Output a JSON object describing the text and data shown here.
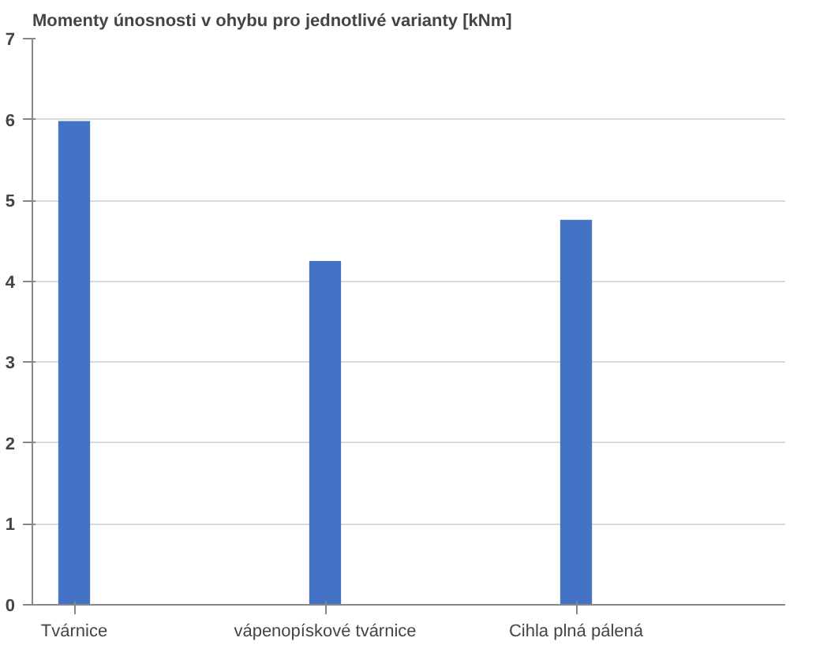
{
  "chart_data": {
    "type": "bar",
    "title": "Momenty únosnosti v ohybu pro jednotlivé varianty [kNm]",
    "categories": [
      "Tvárnice",
      null,
      null,
      "vápenopískové tvárnice",
      null,
      null,
      "Cihla plná pálená",
      null,
      null
    ],
    "values": [
      5.98,
      null,
      null,
      4.25,
      null,
      null,
      4.76,
      null,
      null
    ],
    "color": "#4472c4",
    "ylim": [
      0,
      7
    ],
    "yticks": [
      0,
      1,
      2,
      3,
      4,
      5,
      6,
      7
    ],
    "grid": "y"
  }
}
